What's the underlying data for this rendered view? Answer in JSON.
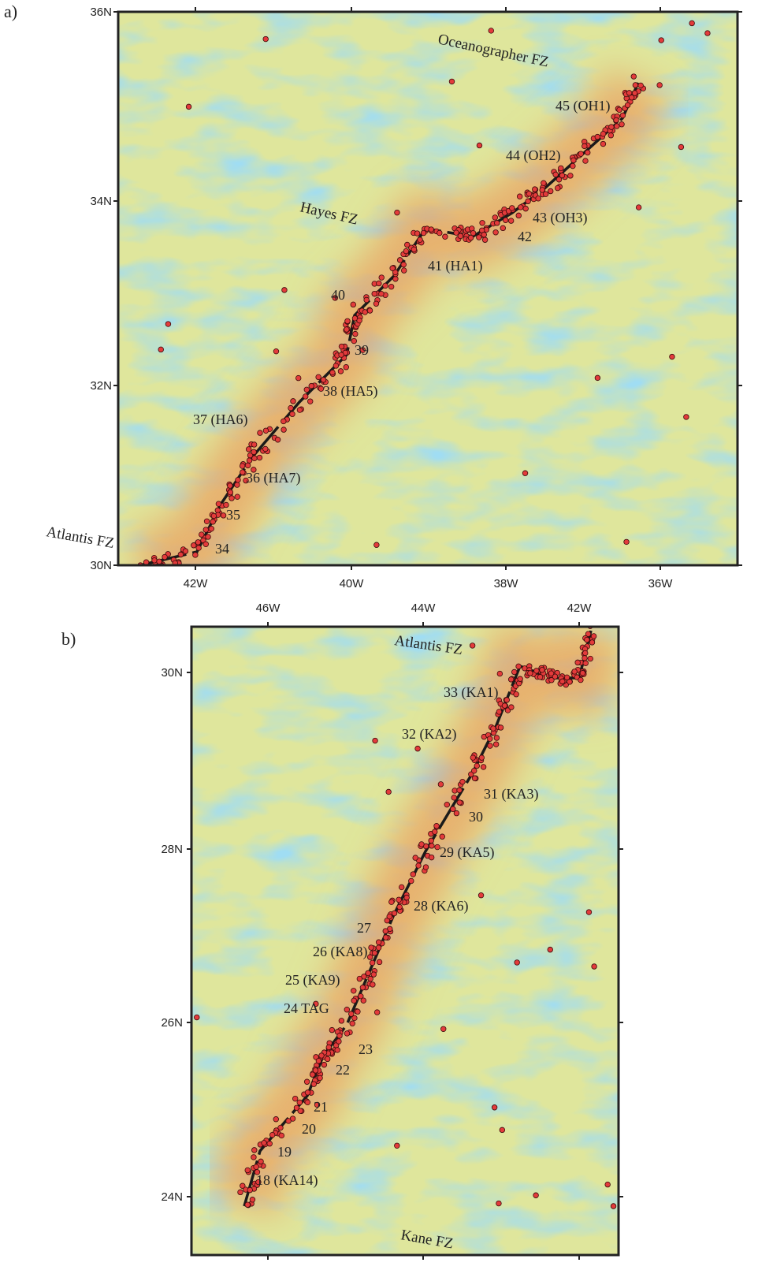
{
  "panels": [
    {
      "label": "a)",
      "lat_ticks": [
        "36N",
        "34N",
        "32N",
        "30N"
      ],
      "lon_ticks": [
        "42W",
        "40W",
        "38W",
        "36W"
      ],
      "features": [
        "Oceanographer FZ",
        "Hayes FZ",
        "Atlantis FZ"
      ],
      "segments": [
        "45 (OH1)",
        "44 (OH2)",
        "43 (OH3)",
        "42",
        "41 (HA1)",
        "40",
        "39",
        "38 (HA5)",
        "37 (HA6)",
        "36 (HA7)",
        "35",
        "34"
      ]
    },
    {
      "label": "b)",
      "lat_ticks": [
        "30N",
        "28N",
        "26N",
        "24N"
      ],
      "lon_ticks": [
        "46W",
        "44W",
        "42W"
      ],
      "features": [
        "Atlantis FZ",
        "Kane FZ"
      ],
      "segments": [
        "33 (KA1)",
        "32 (KA2)",
        "31 (KA3)",
        "30",
        "29 (KA5)",
        "28 (KA6)",
        "27",
        "26 (KA8)",
        "25 (KA9)",
        "24 TAG",
        "23",
        "22",
        "21",
        "20",
        "19",
        "18 (KA14)"
      ]
    }
  ]
}
